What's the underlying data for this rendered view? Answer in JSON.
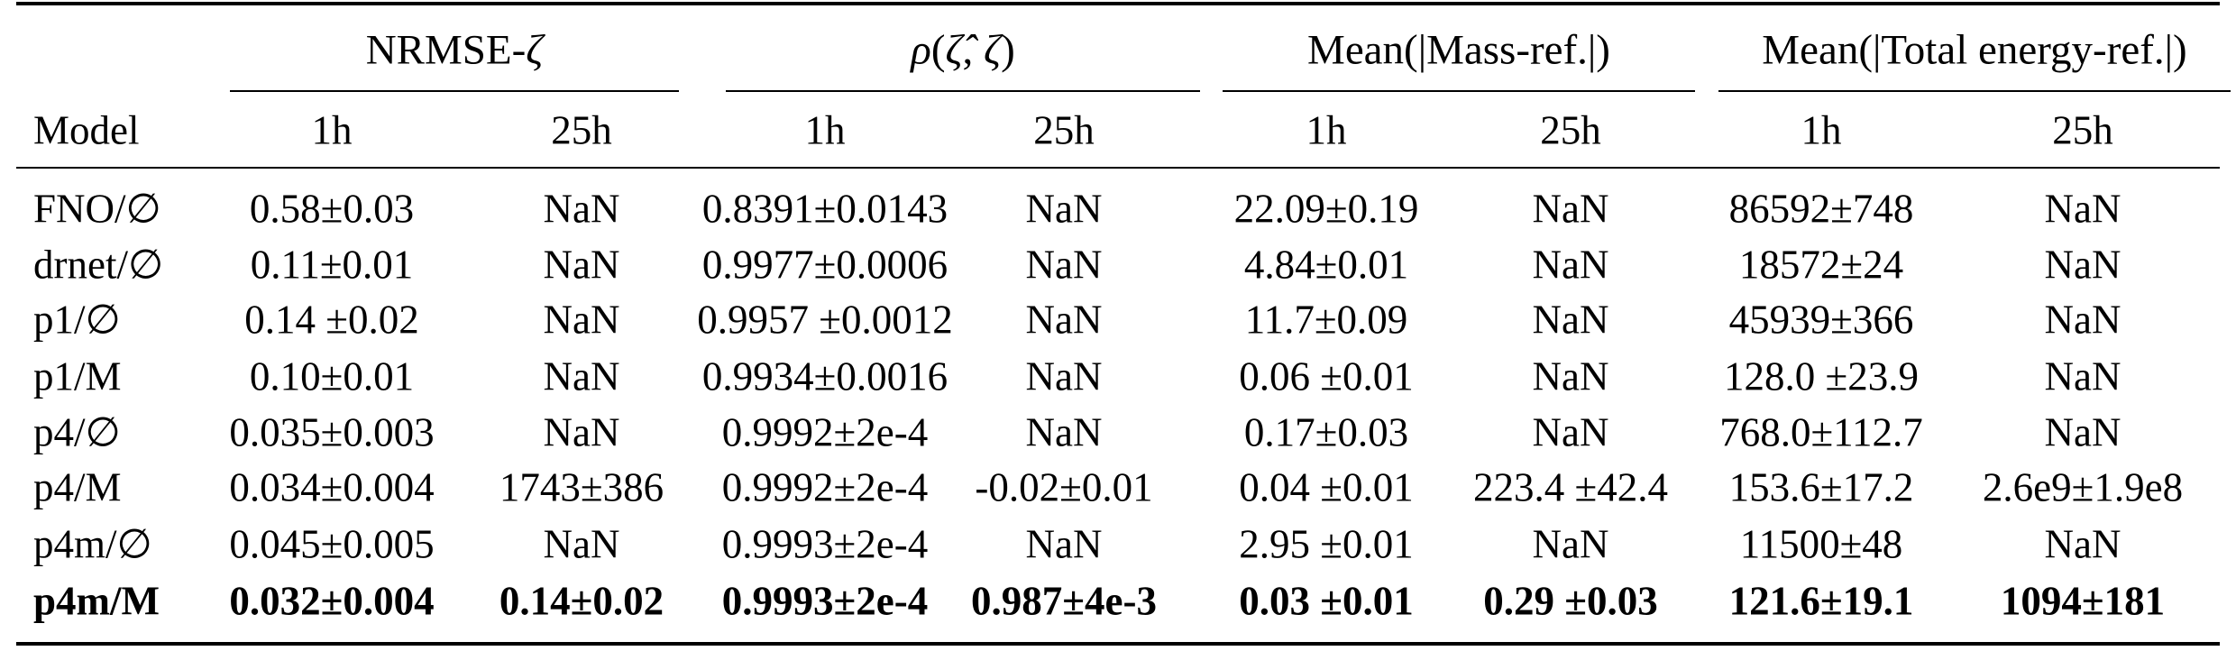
{
  "table": {
    "group_headers": [
      {
        "html": "NRMSE-<span class=\"it\">&zeta;</span>"
      },
      {
        "html": "<span class=\"it\">&rho;</span>(<span class=\"it\">&zeta;&#770;</span>, <span class=\"it\">&zeta;</span>)"
      },
      {
        "html": "Mean(|Mass-ref.|)"
      },
      {
        "html": "Mean(|Total energy-ref.|)"
      }
    ],
    "model_header": "Model",
    "sub_headers": [
      "1h",
      "25h",
      "1h",
      "25h",
      "1h",
      "25h",
      "1h",
      "25h"
    ],
    "rows": [
      {
        "model": "FNO/∅",
        "bold": false,
        "values": [
          "0.58±0.03",
          "NaN",
          "0.8391±0.0143",
          "NaN",
          "22.09±0.19",
          "NaN",
          "86592±748",
          "NaN"
        ]
      },
      {
        "model": "drnet/∅",
        "bold": false,
        "values": [
          "0.11±0.01",
          "NaN",
          "0.9977±0.0006",
          "NaN",
          "4.84±0.01",
          "NaN",
          "18572±24",
          "NaN"
        ]
      },
      {
        "model": "p1/∅",
        "bold": false,
        "values": [
          "0.14 ±0.02",
          "NaN",
          "0.9957 ±0.0012",
          "NaN",
          "11.7±0.09",
          "NaN",
          "45939±366",
          "NaN"
        ]
      },
      {
        "model": "p1/M",
        "bold": false,
        "values": [
          "0.10±0.01",
          "NaN",
          "0.9934±0.0016",
          "NaN",
          "0.06 ±0.01",
          "NaN",
          "128.0 ±23.9",
          "NaN"
        ]
      },
      {
        "model": "p4/∅",
        "bold": false,
        "values": [
          "0.035±0.003",
          "NaN",
          "0.9992±2e-4",
          "NaN",
          "0.17±0.03",
          "NaN",
          "768.0±112.7",
          "NaN"
        ]
      },
      {
        "model": "p4/M",
        "bold": false,
        "values": [
          "0.034±0.004",
          "1743±386",
          "0.9992±2e-4",
          "-0.02±0.01",
          "0.04 ±0.01",
          "223.4 ±42.4",
          "153.6±17.2",
          "2.6e9±1.9e8"
        ]
      },
      {
        "model": "p4m/∅",
        "bold": false,
        "values": [
          "0.045±0.005",
          "NaN",
          "0.9993±2e-4",
          "NaN",
          "2.95 ±0.01",
          "NaN",
          "11500±48",
          "NaN"
        ]
      },
      {
        "model": "p4m/M",
        "bold": true,
        "values": [
          "0.032±0.004",
          "0.14±0.02",
          "0.9993±2e-4",
          "0.987±4e-3",
          "0.03 ±0.01",
          "0.29 ±0.03",
          "121.6±19.1",
          "1094±181"
        ]
      }
    ]
  }
}
